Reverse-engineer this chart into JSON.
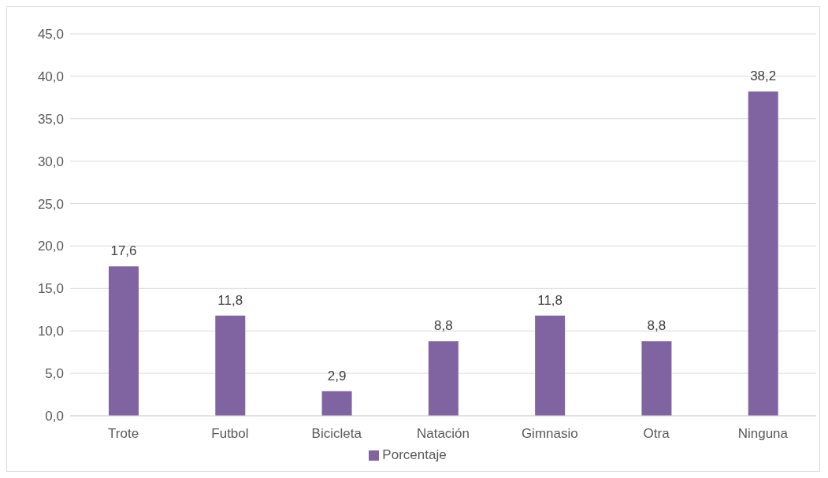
{
  "chart_data": {
    "type": "bar",
    "categories": [
      "Trote",
      "Futbol",
      "Bicicleta",
      "Natación",
      "Gimnasio",
      "Otra",
      "Ninguna"
    ],
    "series": [
      {
        "name": "Porcentaje",
        "color": "#8064a2",
        "values": [
          17.6,
          11.8,
          2.9,
          8.8,
          11.8,
          8.8,
          38.2
        ],
        "value_labels": [
          "17,6",
          "11,8",
          "2,9",
          "8,8",
          "11,8",
          "8,8",
          "38,2"
        ]
      }
    ],
    "ylim": [
      0,
      45
    ],
    "yticks": [
      {
        "value": 0,
        "label": "0,0"
      },
      {
        "value": 5,
        "label": "5,0"
      },
      {
        "value": 10,
        "label": "10,0"
      },
      {
        "value": 15,
        "label": "15,0"
      },
      {
        "value": 20,
        "label": "20,0"
      },
      {
        "value": 25,
        "label": "25,0"
      },
      {
        "value": 30,
        "label": "30,0"
      },
      {
        "value": 35,
        "label": "35,0"
      },
      {
        "value": 40,
        "label": "40,0"
      },
      {
        "value": 45,
        "label": "45,0"
      }
    ],
    "grid": "y",
    "legend": "bottom"
  }
}
